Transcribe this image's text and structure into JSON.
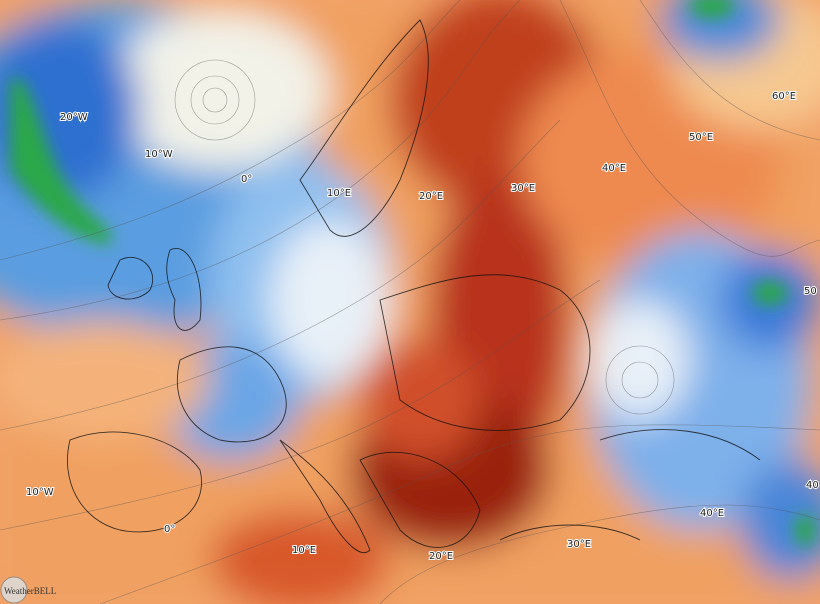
{
  "longitude_labels": [
    "20°W",
    "10°W",
    "0°",
    "10°E",
    "20°E",
    "30°E",
    "40°E",
    "50°E",
    "60°E",
    "10°W",
    "0°",
    "10°E",
    "20°E",
    "30°E",
    "40°E",
    "50",
    "40"
  ],
  "watermark": "WeatherBELL"
}
